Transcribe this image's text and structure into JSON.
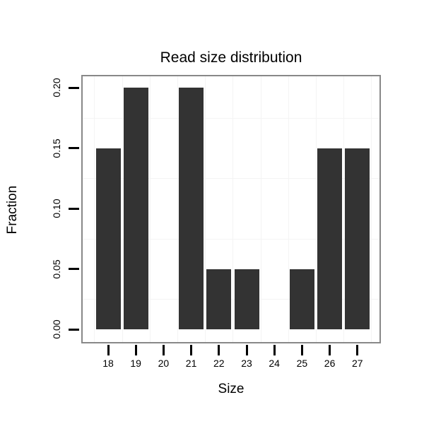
{
  "chart_data": {
    "type": "bar",
    "title": "Read size distribution",
    "xlabel": "Size",
    "ylabel": "Fraction",
    "categories": [
      "18",
      "19",
      "20",
      "21",
      "22",
      "23",
      "24",
      "25",
      "26",
      "27"
    ],
    "values": [
      0.15,
      0.2,
      0,
      0.2,
      0.05,
      0.05,
      0,
      0.05,
      0.15,
      0.15
    ],
    "y_ticks": [
      {
        "label": "0.00",
        "value": 0.0
      },
      {
        "label": "0.05",
        "value": 0.05
      },
      {
        "label": "0.10",
        "value": 0.1
      },
      {
        "label": "0.15",
        "value": 0.15
      },
      {
        "label": "0.20",
        "value": 0.2
      }
    ],
    "ylim": [
      -0.0105,
      0.2094
    ],
    "minor_grid_y": [
      0.025,
      0.075,
      0.125,
      0.175
    ],
    "grid": "minor-only",
    "legend": "none",
    "colors": {
      "bar": "#333333",
      "panel_border": "#888888",
      "grid_minor": "#f4f4f4",
      "tick": "#000000",
      "text": "#000000",
      "background": "#ffffff"
    }
  }
}
